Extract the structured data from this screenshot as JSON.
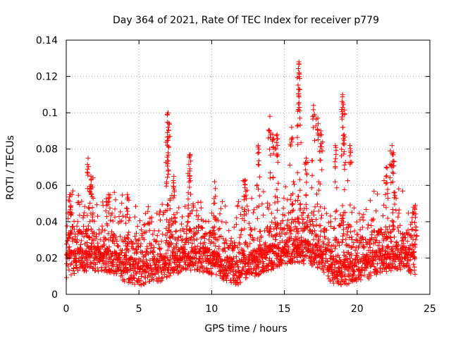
{
  "chart_data": {
    "type": "scatter",
    "title": "Day 364 of 2021, Rate Of TEC Index for receiver p779",
    "xlabel": "GPS time / hours",
    "ylabel": "ROTI / TECUs",
    "xlim": [
      0,
      25
    ],
    "ylim": [
      0,
      0.14
    ],
    "xticks": [
      0,
      5,
      10,
      15,
      20,
      25
    ],
    "xtick_labels": [
      "0",
      "5",
      "10",
      "15",
      "20",
      "25"
    ],
    "yticks": [
      0,
      0.02,
      0.04,
      0.06,
      0.08,
      0.1,
      0.12,
      0.14
    ],
    "ytick_labels": [
      "0",
      "0.02",
      "0.04",
      "0.06",
      "0.08",
      "0.1",
      "0.12",
      "0.14"
    ],
    "grid": true,
    "marker": "+",
    "color": "#ff0000",
    "series": [
      {
        "name": "ROTI",
        "x_range": [
          0,
          24
        ],
        "typical_range": [
          0.005,
          0.04
        ],
        "peaks": [
          {
            "x": 0.3,
            "y": 0.055
          },
          {
            "x": 1.5,
            "y": 0.075
          },
          {
            "x": 1.7,
            "y": 0.065
          },
          {
            "x": 2.9,
            "y": 0.055
          },
          {
            "x": 4.2,
            "y": 0.055
          },
          {
            "x": 7.0,
            "y": 0.1
          },
          {
            "x": 7.0,
            "y": 0.092
          },
          {
            "x": 7.0,
            "y": 0.078
          },
          {
            "x": 7.4,
            "y": 0.065
          },
          {
            "x": 8.5,
            "y": 0.077
          },
          {
            "x": 8.5,
            "y": 0.068
          },
          {
            "x": 10.2,
            "y": 0.062
          },
          {
            "x": 12.3,
            "y": 0.063
          },
          {
            "x": 13.2,
            "y": 0.082
          },
          {
            "x": 14.0,
            "y": 0.098
          },
          {
            "x": 14.2,
            "y": 0.088
          },
          {
            "x": 14.5,
            "y": 0.088
          },
          {
            "x": 15.5,
            "y": 0.092
          },
          {
            "x": 16.0,
            "y": 0.128
          },
          {
            "x": 16.0,
            "y": 0.12
          },
          {
            "x": 16.0,
            "y": 0.113
          },
          {
            "x": 16.5,
            "y": 0.075
          },
          {
            "x": 17.0,
            "y": 0.104
          },
          {
            "x": 17.3,
            "y": 0.097
          },
          {
            "x": 17.5,
            "y": 0.09
          },
          {
            "x": 18.5,
            "y": 0.082
          },
          {
            "x": 19.0,
            "y": 0.11
          },
          {
            "x": 19.0,
            "y": 0.103
          },
          {
            "x": 19.1,
            "y": 0.088
          },
          {
            "x": 19.5,
            "y": 0.082
          },
          {
            "x": 22.0,
            "y": 0.07
          },
          {
            "x": 22.4,
            "y": 0.082
          },
          {
            "x": 22.5,
            "y": 0.078
          },
          {
            "x": 24.0,
            "y": 0.049
          }
        ]
      }
    ]
  }
}
